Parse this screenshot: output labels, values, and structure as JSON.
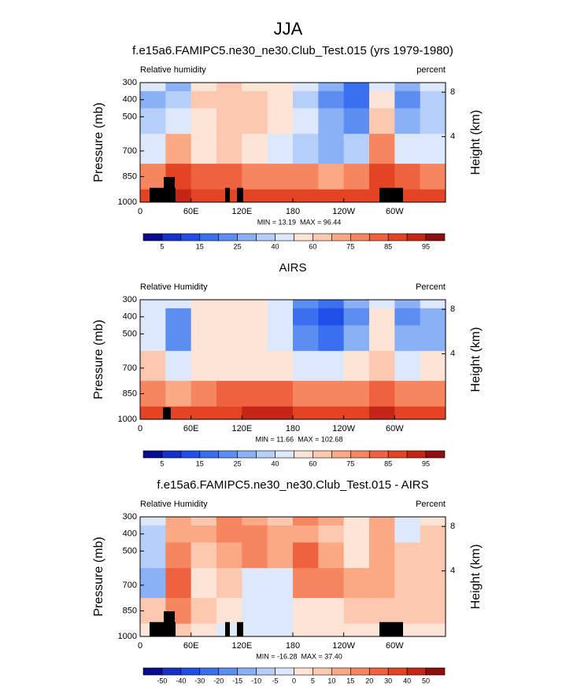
{
  "figure_title": "JJA",
  "chart_data": [
    {
      "type": "contour",
      "title": "f.e15a6.FAMIPC5.ne30_ne30.Club_Test.015 (yrs 1979-1980)",
      "left_label": "Relative humidity",
      "right_label": "percent",
      "ylabel": "Pressure (mb)",
      "y2label": "Height (km)",
      "stats": "MIN = 13.19  MAX = 96.44",
      "xlim": [
        0,
        360
      ],
      "xticks": [
        0,
        {
          "value": 60,
          "label": "60E"
        },
        {
          "value": 120,
          "label": "120E"
        },
        180,
        {
          "value": 240,
          "label": "120W"
        },
        {
          "value": 300,
          "label": "60W"
        }
      ],
      "ylim": [
        1000,
        300
      ],
      "yticks": [
        300,
        400,
        500,
        700,
        850,
        1000
      ],
      "y2ticks": [
        8,
        4
      ],
      "colorbar": {
        "ticks": [
          5,
          15,
          25,
          40,
          60,
          75,
          85,
          95
        ],
        "colors": [
          "#0b0b8f",
          "#1432c8",
          "#1f4fe6",
          "#3a70f0",
          "#5b8ef0",
          "#8ab0f5",
          "#b5cffa",
          "#dde8fc",
          "#fde4d6",
          "#fcc8b0",
          "#fba884",
          "#f6865f",
          "#ef6240",
          "#e34424",
          "#c42515",
          "#8e0f0f"
        ]
      },
      "x": [
        15,
        45,
        75,
        105,
        135,
        165,
        195,
        225,
        255,
        285,
        315,
        345
      ],
      "y": [
        300,
        400,
        500,
        700,
        850,
        1000
      ],
      "z": [
        [
          40,
          30,
          55,
          60,
          55,
          50,
          40,
          25,
          15,
          40,
          25,
          40
        ],
        [
          30,
          35,
          60,
          65,
          60,
          50,
          35,
          20,
          15,
          50,
          20,
          35
        ],
        [
          35,
          40,
          55,
          65,
          65,
          55,
          40,
          25,
          20,
          60,
          25,
          35
        ],
        [
          40,
          70,
          55,
          60,
          50,
          45,
          35,
          30,
          35,
          75,
          40,
          45
        ],
        [
          75,
          85,
          80,
          80,
          75,
          75,
          75,
          70,
          75,
          85,
          80,
          75
        ],
        [
          85,
          90,
          85,
          85,
          85,
          85,
          85,
          85,
          85,
          85,
          85,
          85
        ]
      ]
    },
    {
      "type": "contour",
      "title": "AIRS",
      "left_label": "Relative Humidity",
      "right_label": "Percent",
      "ylabel": "Pressure (mb)",
      "y2label": "Height (km)",
      "stats": "MIN = 11.66  MAX = 102.68",
      "xlim": [
        0,
        360
      ],
      "xticks": [
        0,
        {
          "value": 60,
          "label": "60E"
        },
        {
          "value": 120,
          "label": "120E"
        },
        180,
        {
          "value": 240,
          "label": "120W"
        },
        {
          "value": 300,
          "label": "60W"
        }
      ],
      "ylim": [
        1000,
        300
      ],
      "yticks": [
        300,
        400,
        500,
        700,
        850,
        1000
      ],
      "y2ticks": [
        8,
        4
      ],
      "colorbar": {
        "ticks": [
          5,
          15,
          25,
          40,
          60,
          75,
          85,
          95
        ],
        "colors": [
          "#0b0b8f",
          "#1432c8",
          "#1f4fe6",
          "#3a70f0",
          "#5b8ef0",
          "#8ab0f5",
          "#b5cffa",
          "#dde8fc",
          "#fde4d6",
          "#fcc8b0",
          "#fba884",
          "#f6865f",
          "#ef6240",
          "#e34424",
          "#c42515",
          "#8e0f0f"
        ]
      },
      "x": [
        15,
        45,
        75,
        105,
        135,
        165,
        195,
        225,
        255,
        285,
        315,
        345
      ],
      "y": [
        300,
        400,
        500,
        700,
        850,
        1000
      ],
      "z": [
        [
          45,
          40,
          55,
          55,
          50,
          45,
          20,
          15,
          25,
          45,
          30,
          40
        ],
        [
          40,
          20,
          50,
          55,
          50,
          45,
          15,
          10,
          20,
          50,
          20,
          25
        ],
        [
          45,
          20,
          50,
          55,
          50,
          45,
          20,
          15,
          25,
          55,
          25,
          30
        ],
        [
          60,
          40,
          55,
          55,
          55,
          55,
          45,
          40,
          50,
          65,
          45,
          50
        ],
        [
          75,
          70,
          75,
          80,
          80,
          80,
          75,
          75,
          75,
          80,
          75,
          75
        ],
        [
          85,
          85,
          85,
          85,
          90,
          90,
          85,
          85,
          85,
          90,
          85,
          85
        ]
      ]
    },
    {
      "type": "contour",
      "title": "f.e15a6.FAMIPC5.ne30_ne30.Club_Test.015 - AIRS",
      "left_label": "Relative Humidity",
      "right_label": "Percent",
      "ylabel": "Pressure (mb)",
      "y2label": "Height (km)",
      "stats": "MIN = -16.28  MAX = 37.40",
      "xlim": [
        0,
        360
      ],
      "xticks": [
        0,
        {
          "value": 60,
          "label": "60E"
        },
        {
          "value": 120,
          "label": "120E"
        },
        180,
        {
          "value": 240,
          "label": "120W"
        },
        {
          "value": 300,
          "label": "60W"
        }
      ],
      "ylim": [
        1000,
        300
      ],
      "yticks": [
        300,
        400,
        500,
        700,
        850,
        1000
      ],
      "y2ticks": [
        8,
        4
      ],
      "colorbar": {
        "ticks": [
          -50,
          -40,
          -30,
          -20,
          -15,
          -10,
          -5,
          0,
          5,
          10,
          15,
          20,
          30,
          40,
          50
        ],
        "colors": [
          "#0b0b8f",
          "#1432c8",
          "#1f4fe6",
          "#3a70f0",
          "#5b8ef0",
          "#8ab0f5",
          "#b5cffa",
          "#dde8fc",
          "#fde4d6",
          "#fcc8b0",
          "#fba884",
          "#f6865f",
          "#ef6240",
          "#e34424",
          "#c42515",
          "#8e0f0f"
        ]
      },
      "x": [
        15,
        45,
        75,
        105,
        135,
        165,
        195,
        225,
        255,
        285,
        315,
        345
      ],
      "y": [
        300,
        400,
        500,
        700,
        850,
        1000
      ],
      "z": [
        [
          -5,
          10,
          5,
          15,
          10,
          5,
          15,
          10,
          0,
          10,
          -5,
          0
        ],
        [
          -10,
          10,
          10,
          15,
          15,
          10,
          10,
          5,
          0,
          10,
          -5,
          5
        ],
        [
          -10,
          15,
          5,
          10,
          15,
          10,
          20,
          10,
          0,
          10,
          5,
          5
        ],
        [
          -15,
          20,
          0,
          5,
          -5,
          -5,
          15,
          15,
          10,
          10,
          5,
          5
        ],
        [
          5,
          15,
          5,
          0,
          -5,
          -5,
          0,
          0,
          5,
          5,
          5,
          5
        ],
        [
          0,
          5,
          0,
          -5,
          -5,
          -5,
          0,
          0,
          0,
          0,
          0,
          0
        ]
      ]
    }
  ]
}
